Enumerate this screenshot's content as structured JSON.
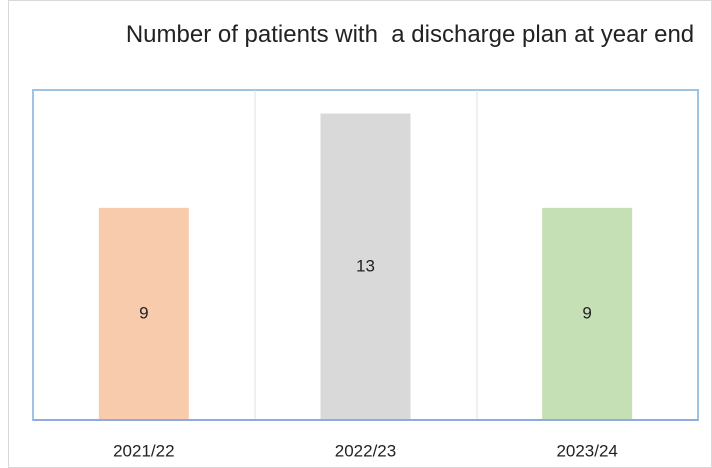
{
  "chart_data": {
    "type": "bar",
    "title": "Number of patients with  a discharge plan at year end",
    "categories": [
      "2021/22",
      "2022/23",
      "2023/24"
    ],
    "values": [
      9,
      13,
      9
    ],
    "colors": [
      "#f8cbad",
      "#d9d9d9",
      "#c5e0b4"
    ],
    "ylim": [
      0,
      14
    ]
  }
}
